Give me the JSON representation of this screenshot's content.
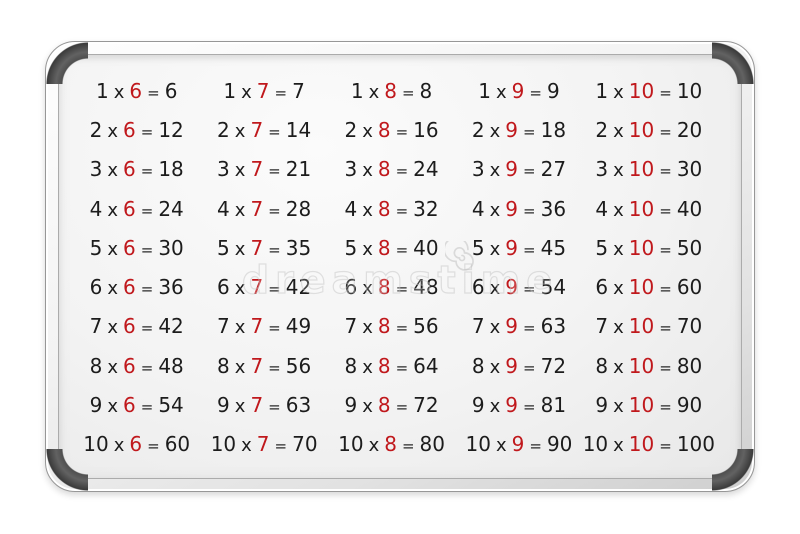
{
  "watermark": {
    "text": "dreamstime",
    "color": "#bebebe",
    "spiral_icon": "dreamstime-spiral"
  },
  "board": {
    "times_symbol": "x",
    "equals_symbol": "=",
    "colors": {
      "multiplier_red": "#c0181c",
      "ink": "#1c1c1c",
      "surface": "#f3f3f3",
      "corner_cap": "#3a3a3a"
    },
    "tables": [
      {
        "multiplier": 6,
        "equations": [
          {
            "factor": 1,
            "product": 6
          },
          {
            "factor": 2,
            "product": 12
          },
          {
            "factor": 3,
            "product": 18
          },
          {
            "factor": 4,
            "product": 24
          },
          {
            "factor": 5,
            "product": 30
          },
          {
            "factor": 6,
            "product": 36
          },
          {
            "factor": 7,
            "product": 42
          },
          {
            "factor": 8,
            "product": 48
          },
          {
            "factor": 9,
            "product": 54
          },
          {
            "factor": 10,
            "product": 60
          }
        ]
      },
      {
        "multiplier": 7,
        "equations": [
          {
            "factor": 1,
            "product": 7
          },
          {
            "factor": 2,
            "product": 14
          },
          {
            "factor": 3,
            "product": 21
          },
          {
            "factor": 4,
            "product": 28
          },
          {
            "factor": 5,
            "product": 35
          },
          {
            "factor": 6,
            "product": 42
          },
          {
            "factor": 7,
            "product": 49
          },
          {
            "factor": 8,
            "product": 56
          },
          {
            "factor": 9,
            "product": 63
          },
          {
            "factor": 10,
            "product": 70
          }
        ]
      },
      {
        "multiplier": 8,
        "equations": [
          {
            "factor": 1,
            "product": 8
          },
          {
            "factor": 2,
            "product": 16
          },
          {
            "factor": 3,
            "product": 24
          },
          {
            "factor": 4,
            "product": 32
          },
          {
            "factor": 5,
            "product": 40
          },
          {
            "factor": 6,
            "product": 48
          },
          {
            "factor": 7,
            "product": 56
          },
          {
            "factor": 8,
            "product": 64
          },
          {
            "factor": 9,
            "product": 72
          },
          {
            "factor": 10,
            "product": 80
          }
        ]
      },
      {
        "multiplier": 9,
        "equations": [
          {
            "factor": 1,
            "product": 9
          },
          {
            "factor": 2,
            "product": 18
          },
          {
            "factor": 3,
            "product": 27
          },
          {
            "factor": 4,
            "product": 36
          },
          {
            "factor": 5,
            "product": 45
          },
          {
            "factor": 6,
            "product": 54
          },
          {
            "factor": 7,
            "product": 63
          },
          {
            "factor": 8,
            "product": 72
          },
          {
            "factor": 9,
            "product": 81
          },
          {
            "factor": 10,
            "product": 90
          }
        ]
      },
      {
        "multiplier": 10,
        "equations": [
          {
            "factor": 1,
            "product": 10
          },
          {
            "factor": 2,
            "product": 20
          },
          {
            "factor": 3,
            "product": 30
          },
          {
            "factor": 4,
            "product": 40
          },
          {
            "factor": 5,
            "product": 50
          },
          {
            "factor": 6,
            "product": 60
          },
          {
            "factor": 7,
            "product": 70
          },
          {
            "factor": 8,
            "product": 80
          },
          {
            "factor": 9,
            "product": 90
          },
          {
            "factor": 10,
            "product": 100
          }
        ]
      }
    ]
  }
}
